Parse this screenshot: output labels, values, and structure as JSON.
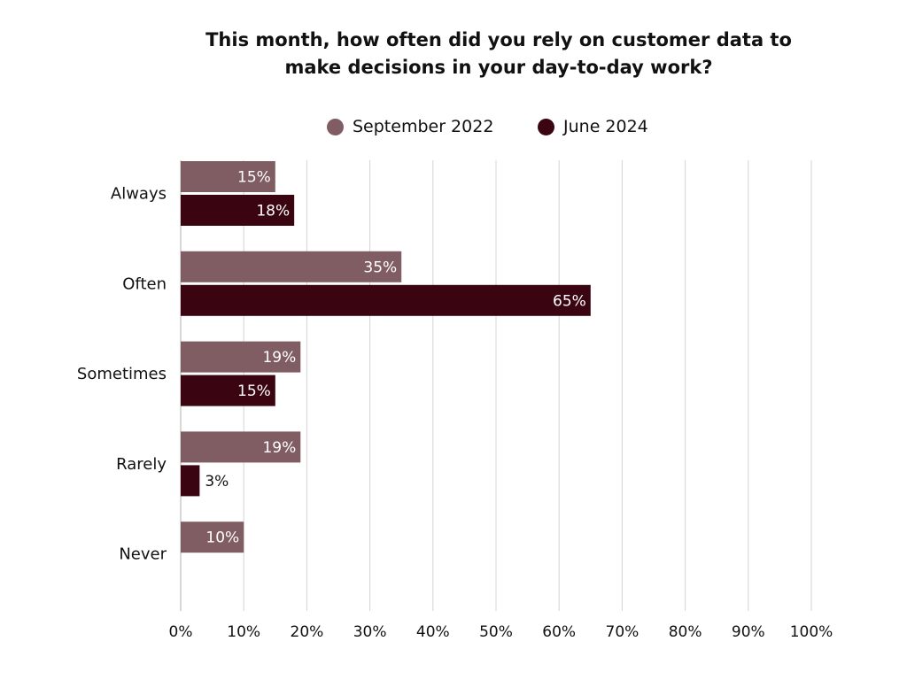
{
  "colors": {
    "series_1": "#805d63",
    "series_2": "#3a0510",
    "grid": "#d4d4d4",
    "axis": "#b0b0b0",
    "text": "#111111",
    "label_inside": "#ffffff"
  },
  "chart_data": {
    "type": "bar",
    "orientation": "horizontal",
    "title_lines": [
      "This month, how often did you rely on customer data to",
      "make decisions in your day-to-day work?"
    ],
    "categories": [
      "Always",
      "Often",
      "Sometimes",
      "Rarely",
      "Never"
    ],
    "series": [
      {
        "name": "September 2022",
        "values": [
          15,
          35,
          19,
          19,
          10
        ],
        "labels": [
          "15%",
          "35%",
          "19%",
          "19%",
          "10%"
        ]
      },
      {
        "name": "June 2024",
        "values": [
          18,
          65,
          15,
          3,
          null
        ],
        "labels": [
          "18%",
          "65%",
          "15%",
          "3%",
          ""
        ]
      }
    ],
    "xlim": [
      0,
      100
    ],
    "xticks": [
      0,
      10,
      20,
      30,
      40,
      50,
      60,
      70,
      80,
      90,
      100
    ],
    "xtick_labels": [
      "0%",
      "10%",
      "20%",
      "30%",
      "40%",
      "50%",
      "60%",
      "70%",
      "80%",
      "90%",
      "100%"
    ],
    "legend_position": "top-center",
    "grid": "vertical"
  }
}
